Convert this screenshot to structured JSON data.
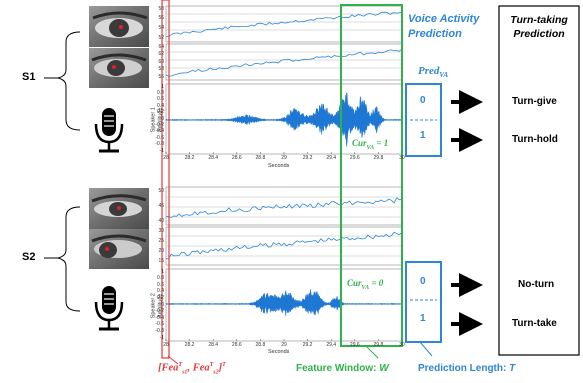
{
  "speakers": [
    {
      "label": "S1",
      "channel_label": "Speaker 1",
      "amplitude_label": "Amplitude",
      "y_ticks_top": [
        "58",
        "56",
        "54",
        "52"
      ],
      "y_ticks_mid": [
        "64",
        "62",
        "60",
        "58",
        "56"
      ],
      "y_ticks_amp": [
        "1",
        "0.8",
        "0.6",
        "0.4",
        "0.2",
        "0",
        "-0.2",
        "-0.4",
        "-0.6",
        "-0.8",
        "-1"
      ],
      "cur_va": "Cur",
      "cur_va_sub": "VA",
      "cur_va_value": " = 1",
      "pred_bins": [
        "0",
        "1"
      ],
      "outputs": [
        "Turn-give",
        "Turn-hold"
      ]
    },
    {
      "label": "S2",
      "channel_label": "Speaker 2",
      "amplitude_label": "Amplitude",
      "y_ticks_top": [
        "50",
        "45",
        "40"
      ],
      "y_ticks_mid": [
        "30",
        "25",
        "20",
        "15"
      ],
      "y_ticks_amp": [
        "1",
        "0.8",
        "0.6",
        "0.4",
        "0.2",
        "0",
        "-0.2",
        "-0.4",
        "-0.6",
        "-0.8",
        "-1"
      ],
      "cur_va": "Cur",
      "cur_va_sub": "VA",
      "cur_va_value": " = 0",
      "pred_bins": [
        "0",
        "1"
      ],
      "outputs": [
        "No-turn",
        "Turn-take"
      ]
    }
  ],
  "x_ticks": [
    "28",
    "28.2",
    "28.4",
    "28.6",
    "28.8",
    "29",
    "29.2",
    "29.4",
    "29.6",
    "29.8",
    "30"
  ],
  "x_axis_title": "Seconds",
  "voice_activity_title": [
    "Voice Activity",
    "Prediction"
  ],
  "pred_va": "Pred",
  "pred_va_sub": "VA",
  "turn_taking_title": [
    "Turn-taking",
    "Prediction"
  ],
  "captions": {
    "features": "[Fea",
    "feature_window": "Feature Window: ",
    "feature_window_symbol": "W",
    "prediction_length": "Prediction Length: ",
    "prediction_length_symbol": "T"
  },
  "colors": {
    "signal": "#1f77d4",
    "window": "#2fb24a",
    "features": "#e03a3a",
    "prediction": "#2e86d6"
  }
}
